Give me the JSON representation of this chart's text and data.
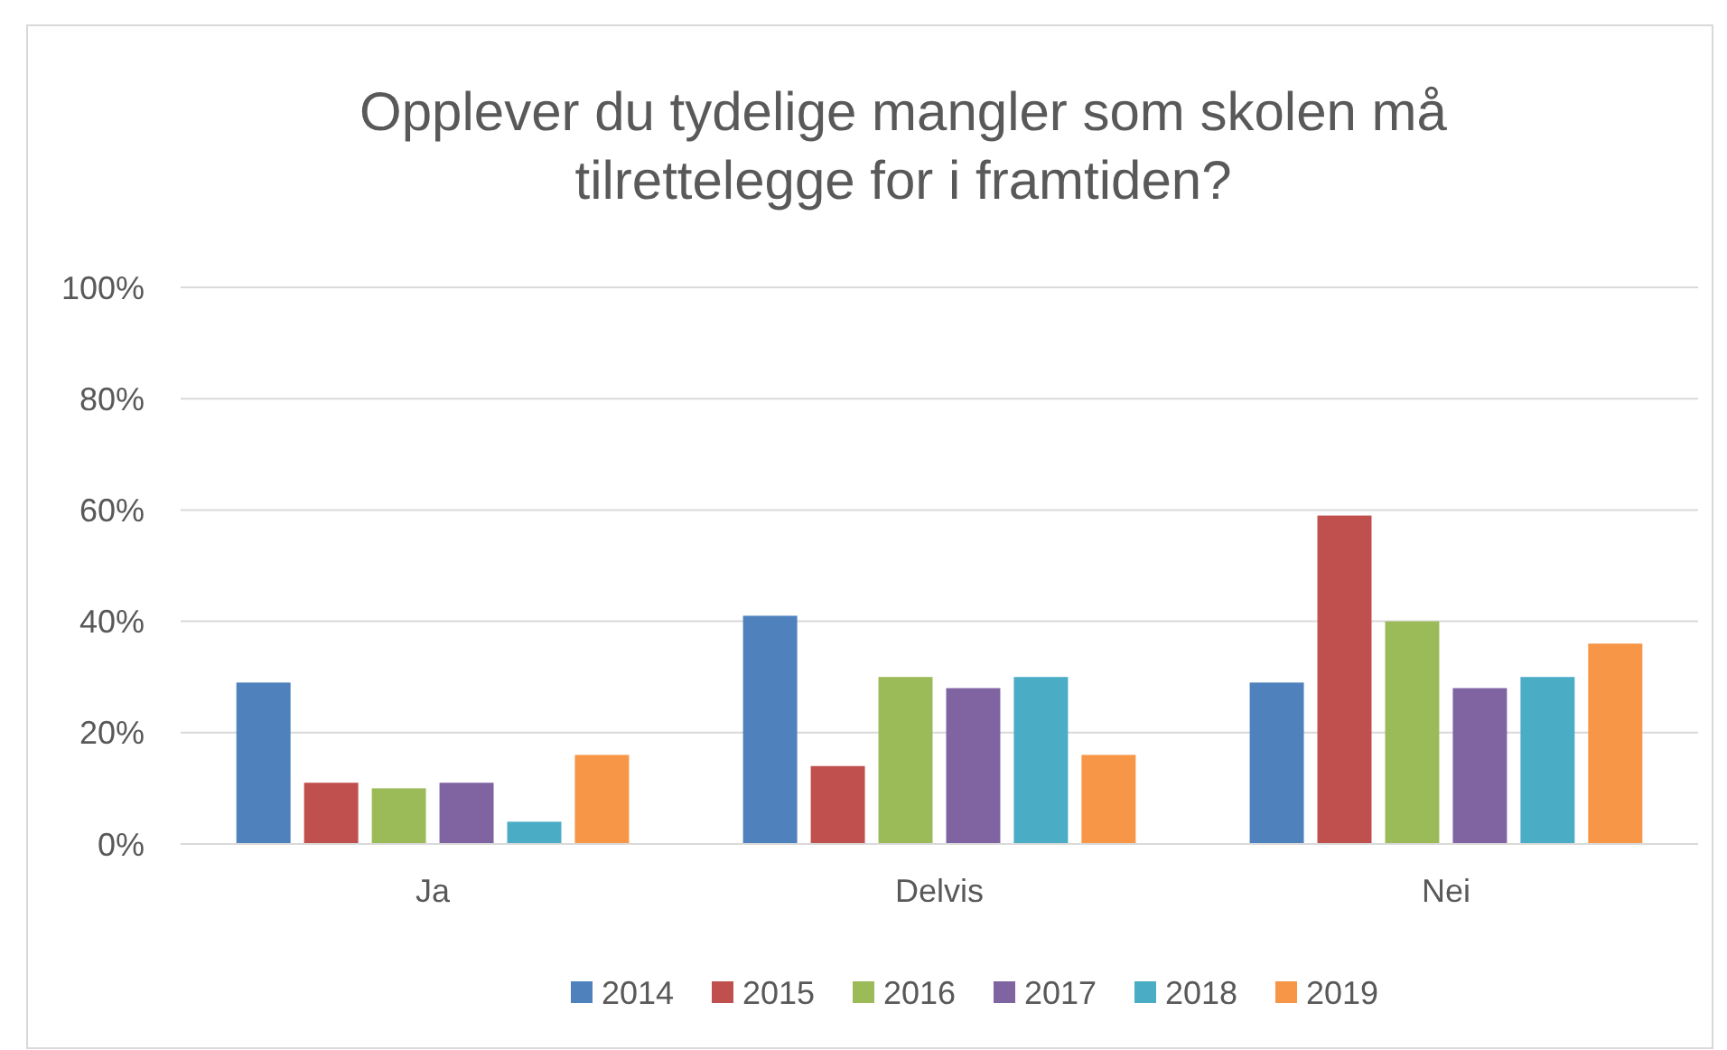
{
  "chart_data": {
    "type": "bar",
    "title": "Opplever du tydelige mangler som skolen må tilrettelegge for i framtiden?",
    "categories": [
      "Ja",
      "Delvis",
      "Nei"
    ],
    "series": [
      {
        "name": "2014",
        "color": "#4f81bd",
        "values": [
          29,
          41,
          29
        ]
      },
      {
        "name": "2015",
        "color": "#c0504d",
        "values": [
          11,
          14,
          59
        ]
      },
      {
        "name": "2016",
        "color": "#9bbb59",
        "values": [
          10,
          30,
          40
        ]
      },
      {
        "name": "2017",
        "color": "#8064a2",
        "values": [
          11,
          28,
          28
        ]
      },
      {
        "name": "2018",
        "color": "#4bacc6",
        "values": [
          4,
          30,
          30
        ]
      },
      {
        "name": "2019",
        "color": "#f79646",
        "values": [
          16,
          16,
          36
        ]
      }
    ],
    "ylim": [
      0,
      100
    ],
    "yticks": [
      {
        "value": 0,
        "label": "0%"
      },
      {
        "value": 20,
        "label": "20%"
      },
      {
        "value": 40,
        "label": "40%"
      },
      {
        "value": 60,
        "label": "60%"
      },
      {
        "value": 80,
        "label": "80%"
      },
      {
        "value": 100,
        "label": "100%"
      }
    ],
    "grid": "y",
    "legend": "bottom"
  }
}
